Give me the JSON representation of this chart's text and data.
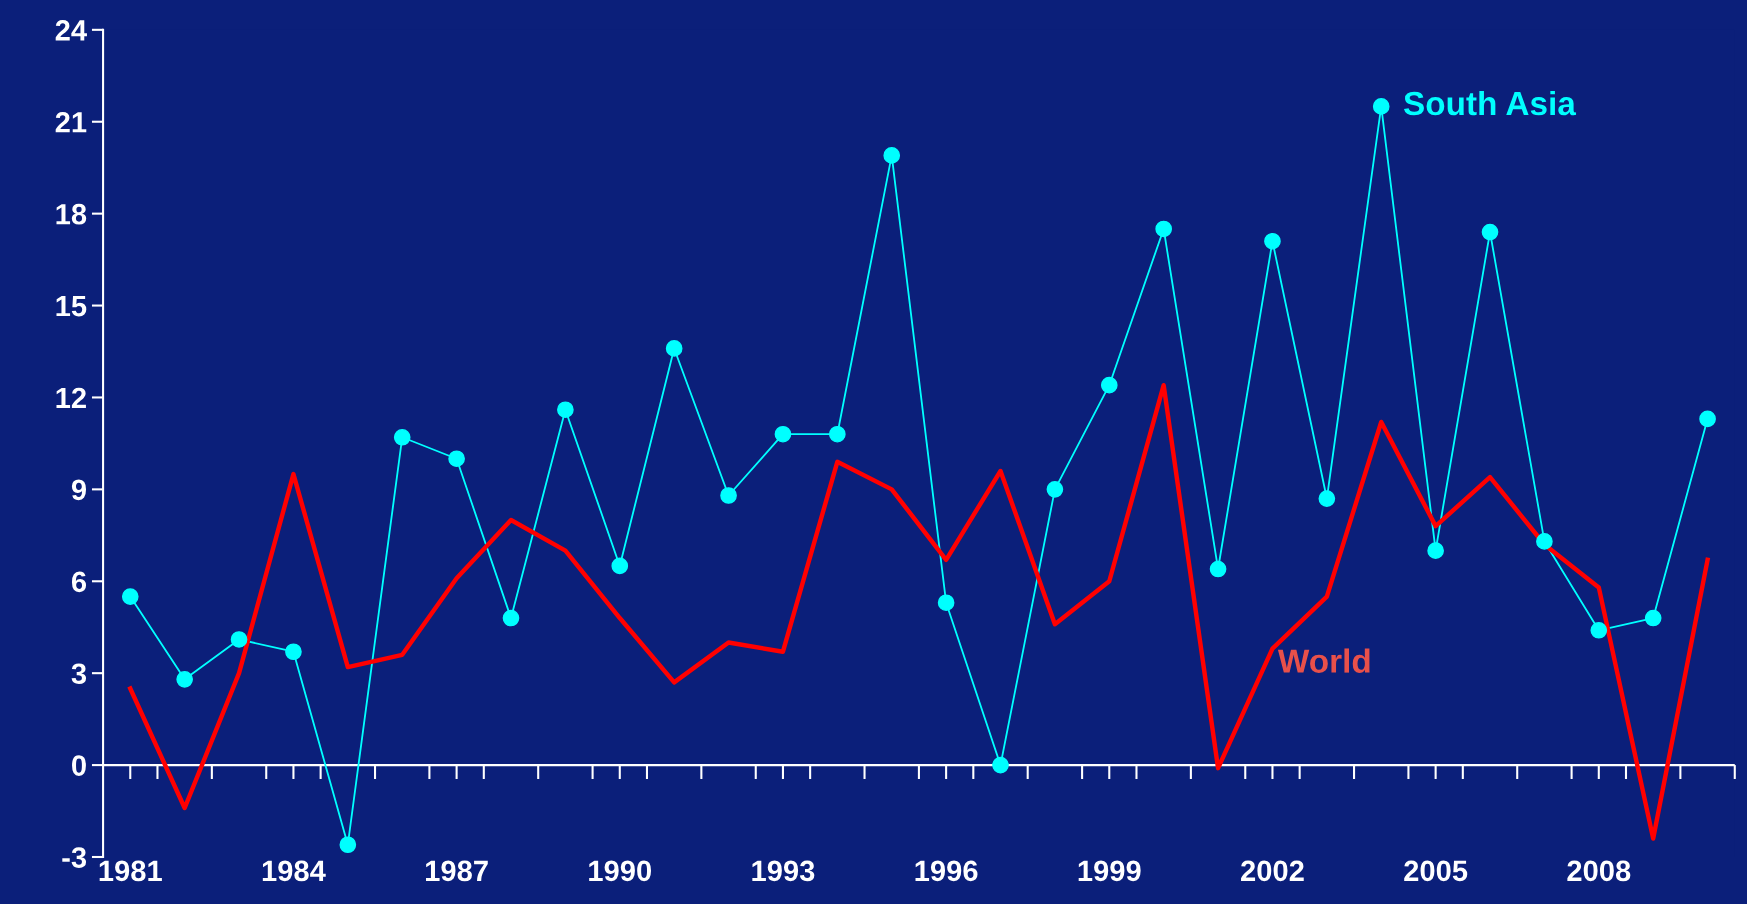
{
  "chart_data": {
    "type": "line",
    "x": [
      1981,
      1982,
      1983,
      1984,
      1985,
      1986,
      1987,
      1988,
      1989,
      1990,
      1991,
      1992,
      1993,
      1994,
      1995,
      1996,
      1997,
      1998,
      1999,
      2000,
      2001,
      2002,
      2003,
      2004,
      2005,
      2006,
      2007,
      2008,
      2009,
      2010
    ],
    "series": [
      {
        "name": "South Asia",
        "color": "#00ffff",
        "marker": "circle",
        "values": [
          5.5,
          2.8,
          4.1,
          3.7,
          -2.6,
          10.7,
          10.0,
          4.8,
          11.6,
          6.5,
          13.6,
          8.8,
          10.8,
          10.8,
          19.9,
          5.3,
          0.0,
          9.0,
          12.4,
          17.5,
          6.4,
          17.1,
          8.7,
          21.5,
          7.0,
          17.4,
          7.3,
          4.4,
          4.8,
          11.3
        ]
      },
      {
        "name": "World",
        "color": "#ff0000",
        "marker": "none",
        "values": [
          2.5,
          -1.4,
          3.0,
          9.5,
          3.2,
          3.6,
          6.1,
          8.0,
          7.0,
          4.8,
          2.7,
          4.0,
          3.7,
          9.9,
          9.0,
          6.7,
          9.6,
          4.6,
          6.0,
          12.4,
          -0.1,
          3.8,
          5.5,
          11.2,
          7.8,
          9.4,
          7.2,
          5.8,
          -2.4,
          6.7
        ]
      }
    ],
    "xlim": [
      1980.5,
      2010.5
    ],
    "xticks": [
      1981,
      {
        "value": 1981.5,
        "label": null
      },
      {
        "value": 1982.5,
        "label": null
      },
      {
        "value": 1983.5,
        "label": null
      },
      1984,
      {
        "value": 1984.5,
        "label": null
      },
      {
        "value": 1985.5,
        "label": null
      },
      {
        "value": 1986.5,
        "label": null
      },
      1987,
      {
        "value": 1987.5,
        "label": null
      },
      {
        "value": 1988.5,
        "label": null
      },
      {
        "value": 1989.5,
        "label": null
      },
      1990,
      {
        "value": 1990.5,
        "label": null
      },
      {
        "value": 1991.5,
        "label": null
      },
      {
        "value": 1992.5,
        "label": null
      },
      1993,
      {
        "value": 1993.5,
        "label": null
      },
      {
        "value": 1994.5,
        "label": null
      },
      {
        "value": 1995.5,
        "label": null
      },
      1996,
      {
        "value": 1996.5,
        "label": null
      },
      {
        "value": 1997.5,
        "label": null
      },
      {
        "value": 1998.5,
        "label": null
      },
      1999,
      {
        "value": 1999.5,
        "label": null
      },
      {
        "value": 2000.5,
        "label": null
      },
      {
        "value": 2001.5,
        "label": null
      },
      2002,
      {
        "value": 2002.5,
        "label": null
      },
      {
        "value": 2003.5,
        "label": null
      },
      {
        "value": 2004.5,
        "label": null
      },
      2005,
      {
        "value": 2005.5,
        "label": null
      },
      {
        "value": 2006.5,
        "label": null
      },
      {
        "value": 2007.5,
        "label": null
      },
      2008,
      {
        "value": 2008.5,
        "label": null
      },
      {
        "value": 2009.5,
        "label": null
      },
      {
        "value": 2010.5,
        "label": null
      }
    ],
    "ylim": [
      -3,
      24
    ],
    "yticks": [
      -3,
      0,
      3,
      6,
      9,
      12,
      15,
      18,
      21,
      24
    ],
    "grid": false,
    "ref_lines": [
      {
        "axis": "y",
        "value": 0,
        "color": "#ffffff",
        "line_style": "solid"
      }
    ],
    "legend": false,
    "line_style": "solid"
  }
}
